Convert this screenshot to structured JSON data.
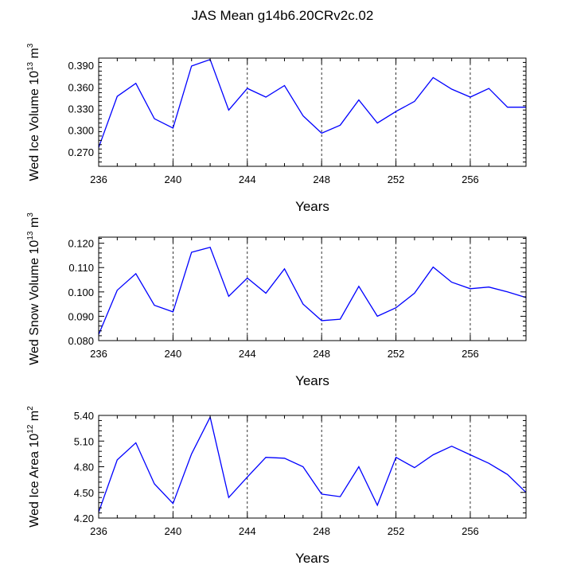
{
  "title": "JAS Mean g14b6.20CRv2c.02",
  "chart_data": [
    {
      "type": "line",
      "id": "ice-volume",
      "ylabel_parts": [
        "Wed Ice Volume 10",
        "13",
        " m",
        "3"
      ],
      "xlabel": "Years",
      "xlim": [
        236,
        259
      ],
      "xticks": [
        236,
        240,
        244,
        248,
        252,
        256
      ],
      "xtick_labels": [
        "236",
        "240",
        "244",
        "248",
        "252",
        "256"
      ],
      "ylim": [
        0.25,
        0.4
      ],
      "yticks": [
        0.27,
        0.3,
        0.33,
        0.36,
        0.39
      ],
      "ytick_labels": [
        "0.270",
        "0.300",
        "0.330",
        "0.360",
        "0.390"
      ],
      "vlines": [
        240,
        244,
        248,
        252,
        256
      ],
      "color": "#0000ff",
      "x": [
        236,
        237,
        238,
        239,
        240,
        241,
        242,
        243,
        244,
        245,
        246,
        247,
        248,
        249,
        250,
        251,
        252,
        253,
        254,
        255,
        256,
        257,
        258,
        259
      ],
      "y": [
        0.276,
        0.347,
        0.365,
        0.316,
        0.303,
        0.389,
        0.398,
        0.328,
        0.358,
        0.346,
        0.362,
        0.32,
        0.296,
        0.307,
        0.342,
        0.31,
        0.326,
        0.34,
        0.373,
        0.357,
        0.346,
        0.358,
        0.332,
        0.332
      ]
    },
    {
      "type": "line",
      "id": "snow-volume",
      "ylabel_parts": [
        "Wed Snow Volume 10",
        "13",
        " m",
        "3"
      ],
      "xlabel": "Years",
      "xlim": [
        236,
        259
      ],
      "xticks": [
        236,
        240,
        244,
        248,
        252,
        256
      ],
      "xtick_labels": [
        "236",
        "240",
        "244",
        "248",
        "252",
        "256"
      ],
      "ylim": [
        0.08,
        0.1225
      ],
      "yticks": [
        0.08,
        0.09,
        0.1,
        0.11,
        0.12
      ],
      "ytick_labels": [
        "0.080",
        "0.090",
        "0.100",
        "0.110",
        "0.120"
      ],
      "vlines": [
        240,
        244,
        248,
        252,
        256
      ],
      "color": "#0000ff",
      "x": [
        236,
        237,
        238,
        239,
        240,
        241,
        242,
        243,
        244,
        245,
        246,
        247,
        248,
        249,
        250,
        251,
        252,
        253,
        254,
        255,
        256,
        257,
        258,
        259
      ],
      "y": [
        0.0825,
        0.1007,
        0.1075,
        0.0945,
        0.0918,
        0.1163,
        0.1183,
        0.0982,
        0.1057,
        0.0995,
        0.1095,
        0.095,
        0.0882,
        0.0888,
        0.1023,
        0.09,
        0.0935,
        0.0995,
        0.1102,
        0.104,
        0.1013,
        0.102,
        0.1,
        0.0977
      ]
    },
    {
      "type": "line",
      "id": "ice-area",
      "ylabel_parts": [
        "Wed Ice Area 10",
        "12",
        " m",
        "2"
      ],
      "xlabel": "Years",
      "xlim": [
        236,
        259
      ],
      "xticks": [
        236,
        240,
        244,
        248,
        252,
        256
      ],
      "xtick_labels": [
        "236",
        "240",
        "244",
        "248",
        "252",
        "256"
      ],
      "ylim": [
        4.2,
        5.4
      ],
      "yticks": [
        4.2,
        4.5,
        4.8,
        5.1,
        5.4
      ],
      "ytick_labels": [
        "4.20",
        "4.50",
        "4.80",
        "5.10",
        "5.40"
      ],
      "vlines": [
        240,
        244,
        248,
        252,
        256
      ],
      "color": "#0000ff",
      "x": [
        236,
        237,
        238,
        239,
        240,
        241,
        242,
        243,
        244,
        245,
        246,
        247,
        248,
        249,
        250,
        251,
        252,
        253,
        254,
        255,
        256,
        257,
        258,
        259
      ],
      "y": [
        4.27,
        4.88,
        5.08,
        4.6,
        4.37,
        4.95,
        5.38,
        4.44,
        4.68,
        4.91,
        4.9,
        4.8,
        4.48,
        4.45,
        4.8,
        4.35,
        4.91,
        4.79,
        4.94,
        5.04,
        4.94,
        4.84,
        4.71,
        4.5
      ]
    }
  ]
}
